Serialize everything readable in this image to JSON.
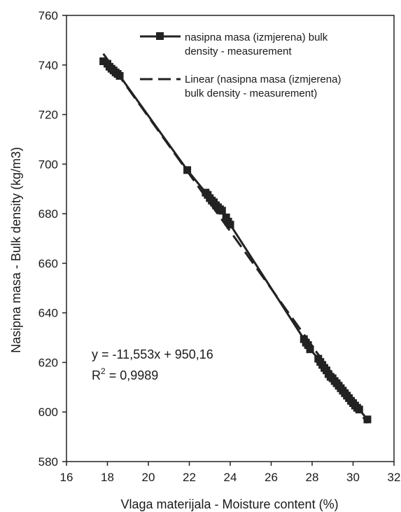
{
  "chart_data": {
    "type": "scatter",
    "xlabel": "Vlaga materijala - Moisture content (%)",
    "ylabel": "Nasipna masa - Bulk density (kg/m3)",
    "xlim": [
      16,
      32
    ],
    "ylim": [
      580,
      760
    ],
    "xticks": [
      "16",
      "18",
      "20",
      "22",
      "24",
      "26",
      "28",
      "30",
      "32"
    ],
    "yticks": [
      "580",
      "600",
      "620",
      "640",
      "660",
      "680",
      "700",
      "720",
      "740",
      "760"
    ],
    "grid": false,
    "legend_position": "top-right",
    "series": [
      {
        "name": "nasipna masa (izmjerena) bulk density - measurement",
        "legend_lines": [
          "nasipna masa (izmjerena)  bulk",
          "density - measurement"
        ],
        "style": "solid-line-square-markers",
        "color": "#222222",
        "x": [
          17.8,
          18.0,
          18.1,
          18.2,
          18.3,
          18.4,
          18.5,
          18.6,
          21.9,
          22.8,
          22.9,
          23.0,
          23.1,
          23.2,
          23.3,
          23.4,
          23.5,
          23.6,
          23.8,
          23.9,
          24.0,
          27.6,
          27.7,
          27.8,
          27.9,
          28.3,
          28.4,
          28.5,
          28.6,
          28.7,
          28.8,
          28.9,
          29.0,
          29.1,
          29.2,
          29.3,
          29.4,
          29.5,
          29.6,
          29.7,
          29.8,
          29.9,
          30.0,
          30.1,
          30.2,
          30.3,
          30.7
        ],
        "y": [
          741.5,
          740.5,
          739.3,
          738.5,
          737.8,
          737.0,
          736.4,
          735.6,
          697.6,
          688.5,
          687.6,
          686.3,
          685.3,
          684.6,
          683.4,
          682.6,
          681.8,
          681.2,
          678.5,
          676.8,
          675.6,
          629.4,
          628.0,
          627.0,
          625.3,
          621.5,
          620.2,
          619.0,
          617.8,
          616.8,
          615.3,
          614.2,
          613.6,
          612.5,
          611.6,
          610.6,
          609.6,
          608.6,
          607.6,
          606.6,
          605.6,
          604.5,
          603.6,
          602.6,
          601.7,
          601.0,
          597.0
        ]
      },
      {
        "name": "Linear (nasipna masa (izmjerena) bulk density - measurement)",
        "legend_lines": [
          "Linear (nasipna masa (izmjerena)",
          "bulk density - measurement)"
        ],
        "style": "dashed-line",
        "color": "#222222",
        "x": [
          17.8,
          30.7
        ],
        "y": [
          744.52,
          595.49
        ]
      }
    ],
    "annotations": {
      "equation": "y = -11,553x + 950,16",
      "r2_prefix": "R",
      "r2_sup": "2",
      "r2_suffix": " = 0,9989"
    }
  }
}
